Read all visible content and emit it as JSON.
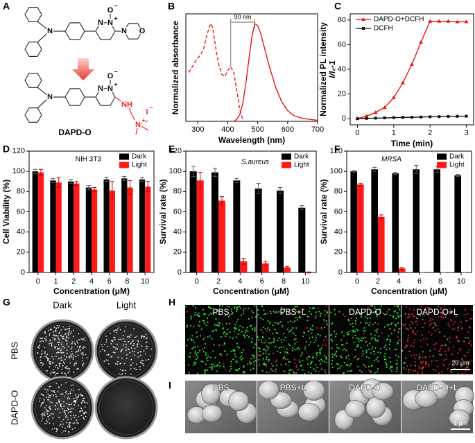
{
  "panel_a": {
    "label": "A",
    "compound": "DAPD-O",
    "top_atoms": [
      "N",
      "N",
      "N",
      "+",
      "O",
      "−",
      "N",
      "O"
    ],
    "bottom_atoms": [
      "N",
      "N",
      "N",
      "+",
      "O",
      "−",
      "NH",
      "N",
      "+",
      "I",
      "−"
    ]
  },
  "chart_data": [
    {
      "type": "line",
      "label": "B",
      "x_label": "Wavelength (nm)",
      "y_label": "Normalized absorbance",
      "annotation": "90 nm",
      "xlim": [
        260,
        700
      ],
      "xticks": [
        300,
        400,
        500,
        600,
        700
      ],
      "ylim": [
        0,
        1.1
      ],
      "series": [
        {
          "color": "#ee1111",
          "dash": true,
          "x": [
            270,
            280,
            290,
            300,
            310,
            320,
            330,
            340,
            345,
            350,
            360,
            370,
            380,
            390,
            400,
            410,
            420,
            430,
            440,
            450
          ],
          "values": [
            0.5,
            0.55,
            0.6,
            0.65,
            0.68,
            0.75,
            0.88,
            0.98,
            1.0,
            0.95,
            0.75,
            0.58,
            0.48,
            0.46,
            0.52,
            0.56,
            0.5,
            0.32,
            0.12,
            0.02
          ]
        },
        {
          "color": "#ee1111",
          "dash": false,
          "x": [
            420,
            430,
            440,
            450,
            460,
            470,
            480,
            490,
            500,
            510,
            520,
            540,
            560,
            580,
            600,
            620,
            650,
            700
          ],
          "values": [
            0,
            0.02,
            0.07,
            0.18,
            0.38,
            0.62,
            0.85,
            1.0,
            0.98,
            0.9,
            0.78,
            0.55,
            0.35,
            0.2,
            0.11,
            0.06,
            0.03,
            0.01
          ]
        }
      ]
    },
    {
      "type": "line",
      "label": "C",
      "x_label": "Time (min)",
      "y_label": [
        "Normalized PL intensity",
        "I/I₀-1"
      ],
      "xlim": [
        -0.2,
        3.2
      ],
      "xticks": [
        0,
        1,
        2,
        3
      ],
      "ylim": [
        -5,
        85
      ],
      "yticks": [
        0,
        20,
        40,
        60,
        80
      ],
      "series": [
        {
          "name": "DAPD-O+DCFH",
          "color": "#ee1111",
          "marker": "triangle",
          "x": [
            0,
            0.25,
            0.5,
            0.75,
            1,
            1.25,
            1.5,
            1.75,
            2,
            2.25,
            2.5,
            2.75,
            3
          ],
          "values": [
            0,
            2,
            5,
            9,
            17,
            29,
            44,
            62,
            79,
            79,
            79,
            78.5,
            78.5
          ]
        },
        {
          "name": "DCFH",
          "color": "#111111",
          "marker": "square",
          "x": [
            0,
            0.25,
            0.5,
            0.75,
            1,
            1.25,
            1.5,
            1.75,
            2,
            2.25,
            2.5,
            2.75,
            3
          ],
          "values": [
            0,
            0.2,
            0.4,
            0.6,
            0.8,
            1,
            1.1,
            1.3,
            1.5,
            1.6,
            1.8,
            1.9,
            2
          ]
        }
      ]
    },
    {
      "type": "bar",
      "label": "D",
      "x_label": "Concentration (μM)",
      "y_label": "Cell Viability (%)",
      "annotation": "NIH 3T3",
      "categories": [
        "0",
        "1",
        "2",
        "4",
        "6",
        "8",
        "10"
      ],
      "ylim": [
        0,
        120
      ],
      "yticks": [
        0,
        20,
        40,
        60,
        80,
        100,
        120
      ],
      "series": [
        {
          "name": "Dark",
          "color": "#000000",
          "values": [
            100,
            91,
            90,
            84,
            92,
            93,
            92
          ],
          "errors": [
            2,
            2,
            2,
            2,
            2,
            2,
            2
          ]
        },
        {
          "name": "Light",
          "color": "#ff1a1a",
          "values": [
            99,
            89,
            88,
            82,
            81,
            84,
            85
          ],
          "errors": [
            3,
            5,
            2,
            2,
            9,
            7,
            5
          ]
        }
      ]
    },
    {
      "type": "bar",
      "label": "E",
      "x_label": "Concentration (μM)",
      "y_label": "Survival rate (%)",
      "annotation": "S.aureus",
      "categories": [
        "0",
        "2",
        "4",
        "6",
        "8",
        "10"
      ],
      "ylim": [
        0,
        120
      ],
      "yticks": [
        0,
        20,
        40,
        60,
        80,
        100,
        120
      ],
      "series": [
        {
          "name": "Dark",
          "color": "#000000",
          "values": [
            100,
            99,
            91,
            83,
            81,
            64
          ],
          "errors": [
            5,
            4,
            2,
            5,
            3,
            2
          ]
        },
        {
          "name": "Light",
          "color": "#ff1a1a",
          "values": [
            91,
            71,
            11,
            9,
            5,
            0
          ],
          "errors": [
            8,
            4,
            3,
            2,
            1,
            0.5
          ]
        }
      ]
    },
    {
      "type": "bar",
      "label": "F",
      "x_label": "Concentration (μM)",
      "y_label": "Survival rate (%)",
      "annotation": "MRSA",
      "categories": [
        "0",
        "2",
        "4",
        "6",
        "8",
        "10"
      ],
      "ylim": [
        0,
        120
      ],
      "yticks": [
        0,
        20,
        40,
        60,
        80,
        100,
        120
      ],
      "series": [
        {
          "name": "Dark",
          "color": "#000000",
          "values": [
            100,
            102,
            98,
            102,
            102,
            96
          ],
          "errors": [
            1,
            2,
            1,
            4,
            3,
            1
          ]
        },
        {
          "name": "Light",
          "color": "#ff1a1a",
          "values": [
            87,
            55,
            4,
            0,
            0,
            0
          ],
          "errors": [
            1,
            2,
            1,
            0,
            0,
            0
          ]
        }
      ]
    }
  ],
  "panel_g": {
    "label": "G",
    "columns": [
      "Dark",
      "Light"
    ],
    "rows": [
      "PBS",
      "DAPD-O"
    ]
  },
  "panel_h": {
    "label": "H",
    "images": [
      "PBS",
      "PBS+L",
      "DAPD-O",
      "DAPD-O+L"
    ],
    "scale": "20 μm"
  },
  "panel_i": {
    "label": "I",
    "images": [
      "PBS",
      "PBS+L",
      "DAPD-O",
      "DAPD-O+L"
    ],
    "scale": "1 μm"
  }
}
